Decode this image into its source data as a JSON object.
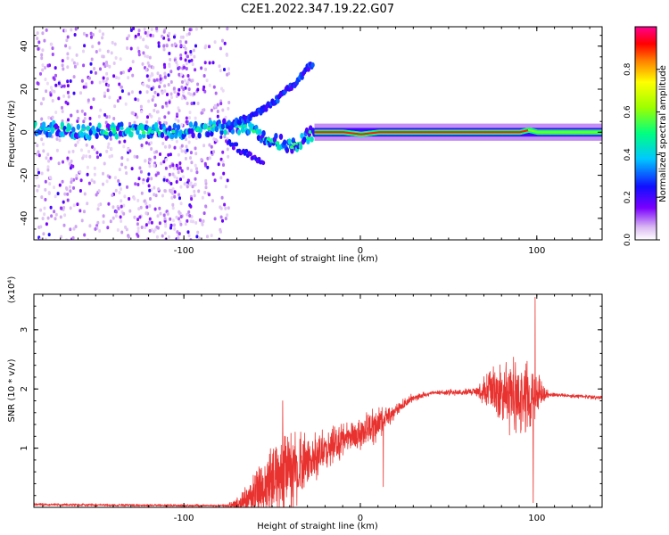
{
  "title": "C2E1.2022.347.19.22.G07",
  "colors": {
    "line": "#e8322f",
    "axis": "#000000",
    "background": "#ffffff"
  },
  "chart_data": [
    {
      "type": "heatmap",
      "xlabel": "Height of straight line (km)",
      "ylabel": "Frequency (Hz)",
      "xlim": [
        -185,
        137
      ],
      "ylim": [
        -50,
        49
      ],
      "x_ticks": [
        {
          "v": -100,
          "label": "-100"
        },
        {
          "v": 0,
          "label": "0"
        },
        {
          "v": 100,
          "label": "100"
        }
      ],
      "y_ticks": [
        {
          "v": -40,
          "label": "-40"
        },
        {
          "v": -20,
          "label": "-20"
        },
        {
          "v": 0,
          "label": "0"
        },
        {
          "v": 20,
          "label": "20"
        },
        {
          "v": 40,
          "label": "40"
        }
      ],
      "colorbar": {
        "label": "Normalized spectral amplitude",
        "range": [
          0,
          1
        ],
        "ticks": [
          {
            "v": 0.0,
            "label": "0.0"
          },
          {
            "v": 0.2,
            "label": "0.2"
          },
          {
            "v": 0.4,
            "label": "0.4"
          },
          {
            "v": 0.6,
            "label": "0.6"
          },
          {
            "v": 0.8,
            "label": "0.8"
          }
        ]
      },
      "main_ridge": [
        [
          -185,
          2
        ],
        [
          -170,
          1
        ],
        [
          -150,
          0
        ],
        [
          -130,
          1
        ],
        [
          -110,
          0
        ],
        [
          -90,
          1
        ],
        [
          -75,
          3
        ],
        [
          -65,
          2
        ],
        [
          -55,
          -2
        ],
        [
          -45,
          -5
        ],
        [
          -38,
          -6
        ],
        [
          -32,
          -3
        ],
        [
          -26,
          0
        ],
        [
          -10,
          0
        ],
        [
          0,
          -1
        ],
        [
          10,
          0
        ],
        [
          40,
          0
        ],
        [
          70,
          0
        ],
        [
          90,
          0
        ],
        [
          95,
          1
        ],
        [
          100,
          0
        ],
        [
          137,
          0
        ]
      ],
      "upper_branch": [
        [
          -75,
          3
        ],
        [
          -60,
          8
        ],
        [
          -50,
          13
        ],
        [
          -42,
          19
        ],
        [
          -35,
          25
        ],
        [
          -27,
          32
        ]
      ],
      "lower_branch": [
        [
          -75,
          -4
        ],
        [
          -65,
          -10
        ],
        [
          -55,
          -15
        ]
      ]
    },
    {
      "type": "line",
      "xlabel": "Height of straight line (km)",
      "ylabel": "SNR (10 * v/v)",
      "multiplier": "(x10⁴)",
      "xlim": [
        -185,
        137
      ],
      "ylim": [
        0,
        3.6
      ],
      "x_ticks": [
        {
          "v": -100,
          "label": "-100"
        },
        {
          "v": 0,
          "label": "0"
        },
        {
          "v": 100,
          "label": "100"
        }
      ],
      "y_ticks": [
        {
          "v": 1,
          "label": "1"
        },
        {
          "v": 2,
          "label": "2"
        },
        {
          "v": 3,
          "label": "3"
        }
      ],
      "series": [
        {
          "trend": [
            [
              -185,
              0.05
            ],
            [
              -150,
              0.04
            ],
            [
              -100,
              0.03
            ],
            [
              -75,
              0.03
            ],
            [
              -68,
              0.05
            ],
            [
              -60,
              0.25
            ],
            [
              -50,
              0.45
            ],
            [
              -40,
              0.65
            ],
            [
              -30,
              0.75
            ],
            [
              -20,
              0.95
            ],
            [
              -10,
              1.15
            ],
            [
              0,
              1.25
            ],
            [
              10,
              1.4
            ],
            [
              20,
              1.65
            ],
            [
              30,
              1.85
            ],
            [
              40,
              1.93
            ],
            [
              60,
              1.95
            ],
            [
              75,
              1.97
            ],
            [
              85,
              1.9
            ],
            [
              100,
              1.9
            ],
            [
              110,
              1.9
            ],
            [
              137,
              1.85
            ]
          ],
          "noise": [
            [
              -185,
              0.02
            ],
            [
              -75,
              0.02
            ],
            [
              -65,
              0.25
            ],
            [
              -55,
              0.45
            ],
            [
              -45,
              0.65
            ],
            [
              -35,
              0.55
            ],
            [
              -20,
              0.3
            ],
            [
              -5,
              0.25
            ],
            [
              10,
              0.3
            ],
            [
              20,
              0.1
            ],
            [
              40,
              0.03
            ],
            [
              65,
              0.06
            ],
            [
              75,
              0.35
            ],
            [
              85,
              0.6
            ],
            [
              95,
              0.6
            ],
            [
              102,
              0.25
            ],
            [
              108,
              0.03
            ],
            [
              137,
              0.03
            ]
          ],
          "spikes": [
            [
              -44,
              1.8
            ],
            [
              13,
              0.35
            ],
            [
              99,
              3.55
            ],
            [
              98,
              0.08
            ]
          ]
        }
      ]
    }
  ]
}
